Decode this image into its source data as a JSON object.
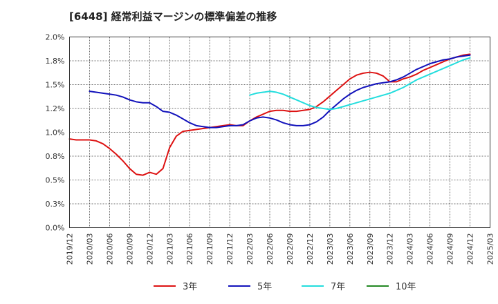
{
  "chart_data": {
    "type": "line",
    "title": "[6448]  経常利益マージンの標準偏差の推移",
    "xlabel": "",
    "ylabel": "",
    "ylim": [
      0,
      2.0
    ],
    "grid": true,
    "legend_position": "bottom",
    "y_ticks": [
      "0.0%",
      "0.3%",
      "0.5%",
      "0.8%",
      "1.0%",
      "1.2%",
      "1.5%",
      "1.8%",
      "2.0%"
    ],
    "y_tick_values": [
      0,
      0.25,
      0.5,
      0.75,
      1.0,
      1.25,
      1.5,
      1.75,
      2.0
    ],
    "x_ticks": [
      "2019/12",
      "2020/03",
      "2020/06",
      "2020/09",
      "2020/12",
      "2021/03",
      "2021/06",
      "2021/09",
      "2021/12",
      "2022/03",
      "2022/06",
      "2022/09",
      "2022/12",
      "2023/03",
      "2023/06",
      "2023/09",
      "2023/12",
      "2024/03",
      "2024/06",
      "2024/09",
      "2024/12",
      "2025/03"
    ],
    "series": [
      {
        "name": "3年",
        "color": "#dd1111",
        "points": [
          [
            "2019/12",
            0.93
          ],
          [
            "2020/01",
            0.92
          ],
          [
            "2020/02",
            0.92
          ],
          [
            "2020/03",
            0.92
          ],
          [
            "2020/04",
            0.91
          ],
          [
            "2020/05",
            0.88
          ],
          [
            "2020/06",
            0.83
          ],
          [
            "2020/07",
            0.77
          ],
          [
            "2020/08",
            0.7
          ],
          [
            "2020/09",
            0.62
          ],
          [
            "2020/10",
            0.56
          ],
          [
            "2020/11",
            0.55
          ],
          [
            "2020/12",
            0.58
          ],
          [
            "2021/01",
            0.56
          ],
          [
            "2021/02",
            0.62
          ],
          [
            "2021/03",
            0.84
          ],
          [
            "2021/04",
            0.96
          ],
          [
            "2021/05",
            1.01
          ],
          [
            "2021/06",
            1.02
          ],
          [
            "2021/07",
            1.03
          ],
          [
            "2021/08",
            1.04
          ],
          [
            "2021/09",
            1.05
          ],
          [
            "2021/10",
            1.06
          ],
          [
            "2021/11",
            1.07
          ],
          [
            "2021/12",
            1.08
          ],
          [
            "2022/01",
            1.07
          ],
          [
            "2022/02",
            1.07
          ],
          [
            "2022/03",
            1.12
          ],
          [
            "2022/04",
            1.16
          ],
          [
            "2022/05",
            1.19
          ],
          [
            "2022/06",
            1.22
          ],
          [
            "2022/07",
            1.23
          ],
          [
            "2022/08",
            1.23
          ],
          [
            "2022/09",
            1.22
          ],
          [
            "2022/10",
            1.22
          ],
          [
            "2022/11",
            1.23
          ],
          [
            "2022/12",
            1.24
          ],
          [
            "2023/01",
            1.27
          ],
          [
            "2023/02",
            1.32
          ],
          [
            "2023/03",
            1.38
          ],
          [
            "2023/04",
            1.44
          ],
          [
            "2023/05",
            1.5
          ],
          [
            "2023/06",
            1.56
          ],
          [
            "2023/07",
            1.6
          ],
          [
            "2023/08",
            1.62
          ],
          [
            "2023/09",
            1.63
          ],
          [
            "2023/10",
            1.62
          ],
          [
            "2023/11",
            1.59
          ],
          [
            "2023/12",
            1.53
          ],
          [
            "2024/01",
            1.53
          ],
          [
            "2024/02",
            1.56
          ],
          [
            "2024/03",
            1.58
          ],
          [
            "2024/04",
            1.61
          ],
          [
            "2024/05",
            1.65
          ],
          [
            "2024/06",
            1.68
          ],
          [
            "2024/07",
            1.71
          ],
          [
            "2024/08",
            1.74
          ],
          [
            "2024/09",
            1.77
          ],
          [
            "2024/10",
            1.79
          ],
          [
            "2024/11",
            1.81
          ],
          [
            "2024/12",
            1.82
          ]
        ]
      },
      {
        "name": "5年",
        "color": "#1111bb",
        "points": [
          [
            "2020/03",
            1.43
          ],
          [
            "2020/04",
            1.42
          ],
          [
            "2020/05",
            1.41
          ],
          [
            "2020/06",
            1.4
          ],
          [
            "2020/07",
            1.39
          ],
          [
            "2020/08",
            1.37
          ],
          [
            "2020/09",
            1.34
          ],
          [
            "2020/10",
            1.32
          ],
          [
            "2020/11",
            1.31
          ],
          [
            "2020/12",
            1.31
          ],
          [
            "2021/01",
            1.27
          ],
          [
            "2021/02",
            1.22
          ],
          [
            "2021/03",
            1.21
          ],
          [
            "2021/04",
            1.18
          ],
          [
            "2021/05",
            1.14
          ],
          [
            "2021/06",
            1.1
          ],
          [
            "2021/07",
            1.07
          ],
          [
            "2021/08",
            1.06
          ],
          [
            "2021/09",
            1.05
          ],
          [
            "2021/10",
            1.05
          ],
          [
            "2021/11",
            1.06
          ],
          [
            "2021/12",
            1.07
          ],
          [
            "2022/01",
            1.07
          ],
          [
            "2022/02",
            1.08
          ],
          [
            "2022/03",
            1.12
          ],
          [
            "2022/04",
            1.15
          ],
          [
            "2022/05",
            1.16
          ],
          [
            "2022/06",
            1.15
          ],
          [
            "2022/07",
            1.13
          ],
          [
            "2022/08",
            1.1
          ],
          [
            "2022/09",
            1.08
          ],
          [
            "2022/10",
            1.07
          ],
          [
            "2022/11",
            1.07
          ],
          [
            "2022/12",
            1.08
          ],
          [
            "2023/01",
            1.11
          ],
          [
            "2023/02",
            1.16
          ],
          [
            "2023/03",
            1.23
          ],
          [
            "2023/04",
            1.29
          ],
          [
            "2023/05",
            1.35
          ],
          [
            "2023/06",
            1.4
          ],
          [
            "2023/07",
            1.44
          ],
          [
            "2023/08",
            1.47
          ],
          [
            "2023/09",
            1.49
          ],
          [
            "2023/10",
            1.51
          ],
          [
            "2023/11",
            1.52
          ],
          [
            "2023/12",
            1.53
          ],
          [
            "2024/01",
            1.55
          ],
          [
            "2024/02",
            1.58
          ],
          [
            "2024/03",
            1.62
          ],
          [
            "2024/04",
            1.66
          ],
          [
            "2024/05",
            1.69
          ],
          [
            "2024/06",
            1.72
          ],
          [
            "2024/07",
            1.74
          ],
          [
            "2024/08",
            1.76
          ],
          [
            "2024/09",
            1.77
          ],
          [
            "2024/10",
            1.79
          ],
          [
            "2024/11",
            1.8
          ],
          [
            "2024/12",
            1.81
          ]
        ]
      },
      {
        "name": "7年",
        "color": "#22dddd",
        "points": [
          [
            "2022/03",
            1.39
          ],
          [
            "2022/04",
            1.41
          ],
          [
            "2022/05",
            1.42
          ],
          [
            "2022/06",
            1.43
          ],
          [
            "2022/07",
            1.42
          ],
          [
            "2022/08",
            1.4
          ],
          [
            "2022/09",
            1.37
          ],
          [
            "2022/10",
            1.34
          ],
          [
            "2022/11",
            1.31
          ],
          [
            "2022/12",
            1.28
          ],
          [
            "2023/01",
            1.26
          ],
          [
            "2023/02",
            1.25
          ],
          [
            "2023/03",
            1.24
          ],
          [
            "2023/04",
            1.25
          ],
          [
            "2023/05",
            1.27
          ],
          [
            "2023/06",
            1.29
          ],
          [
            "2023/07",
            1.31
          ],
          [
            "2023/08",
            1.33
          ],
          [
            "2023/09",
            1.35
          ],
          [
            "2023/10",
            1.37
          ],
          [
            "2023/11",
            1.39
          ],
          [
            "2023/12",
            1.41
          ],
          [
            "2024/01",
            1.44
          ],
          [
            "2024/02",
            1.47
          ],
          [
            "2024/03",
            1.51
          ],
          [
            "2024/04",
            1.55
          ],
          [
            "2024/05",
            1.58
          ],
          [
            "2024/06",
            1.61
          ],
          [
            "2024/07",
            1.64
          ],
          [
            "2024/08",
            1.67
          ],
          [
            "2024/09",
            1.7
          ],
          [
            "2024/10",
            1.73
          ],
          [
            "2024/11",
            1.76
          ],
          [
            "2024/12",
            1.78
          ]
        ]
      },
      {
        "name": "10年",
        "color": "#228822",
        "points": []
      }
    ]
  }
}
